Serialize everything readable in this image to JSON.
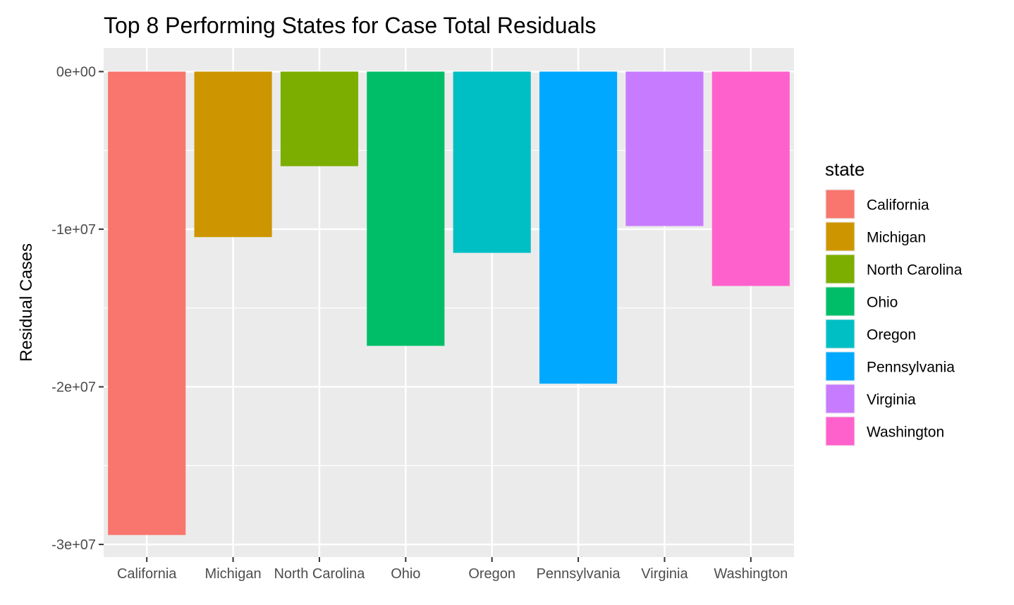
{
  "chart_data": {
    "type": "bar",
    "title": "Top 8 Performing States for Case Total Residuals",
    "xlabel": "",
    "ylabel": "Residual Cases",
    "categories": [
      "California",
      "Michigan",
      "North Carolina",
      "Ohio",
      "Oregon",
      "Pennsylvania",
      "Virginia",
      "Washington"
    ],
    "values": [
      -29400000,
      -10500000,
      -6000000,
      -17400000,
      -11500000,
      -19800000,
      -9800000,
      -13600000
    ],
    "colors": [
      "#F8766D",
      "#CD9600",
      "#7CAE00",
      "#00BE67",
      "#00BFC4",
      "#00A9FF",
      "#C77CFF",
      "#FF61CC"
    ],
    "ylim": [
      -30800000,
      1500000
    ],
    "y_ticks": [
      {
        "value": 0,
        "label": "0e+00"
      },
      {
        "value": -10000000,
        "label": "-1e+07"
      },
      {
        "value": -20000000,
        "label": "-2e+07"
      },
      {
        "value": -30000000,
        "label": "-3e+07"
      }
    ],
    "y_minor_ticks": [
      -5000000,
      -15000000,
      -25000000
    ],
    "grid": true,
    "panel_background": "#EBEBEB",
    "legend": {
      "title": "state",
      "position": "right",
      "entries": [
        "California",
        "Michigan",
        "North Carolina",
        "Ohio",
        "Oregon",
        "Pennsylvania",
        "Virginia",
        "Washington"
      ]
    }
  }
}
